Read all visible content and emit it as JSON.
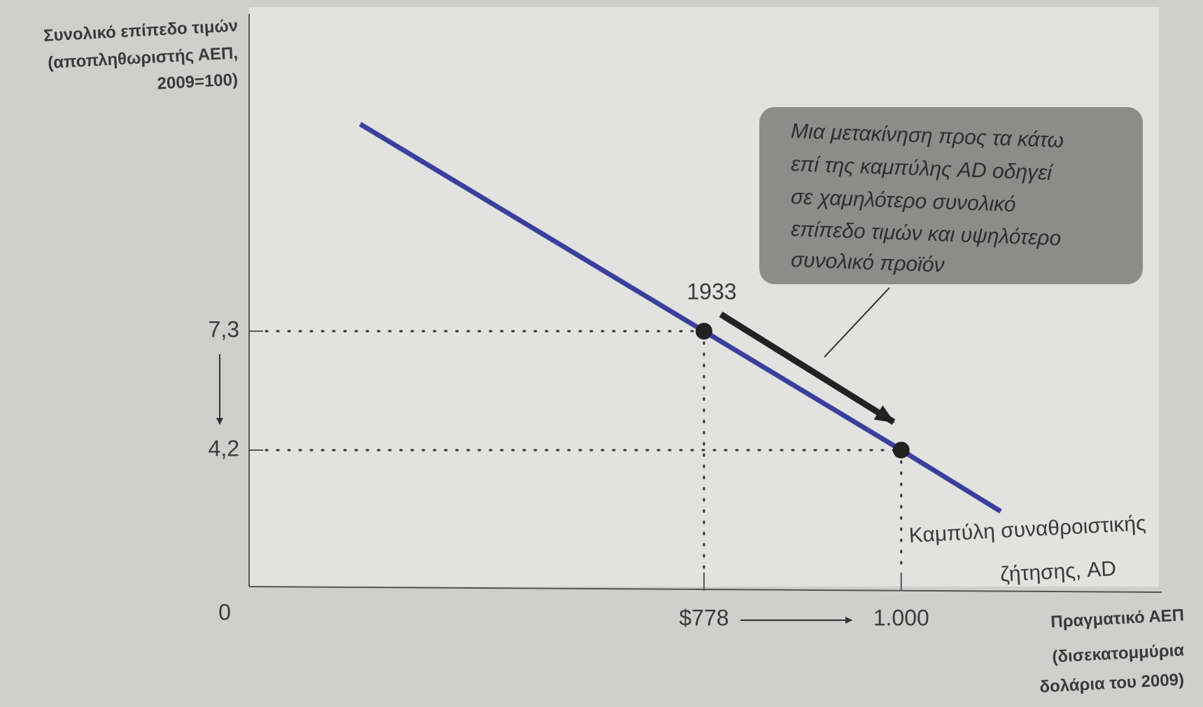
{
  "chart_data": {
    "type": "line",
    "y_label": [
      "Συνολικό επίπεδο τιμών",
      "(αποπληθωριστής ΑΕΠ,",
      "2009=100)"
    ],
    "x_label": [
      "Πραγματικό ΑΕΠ",
      "(δισεκατομμύρια",
      "δολάρια του 2009)"
    ],
    "origin_label": "0",
    "xlim": [
      266,
      1309
    ],
    "ylim": [
      0.64,
      15.57
    ],
    "xticks": [
      {
        "value": 778,
        "label": "$778"
      },
      {
        "value": 1000,
        "label": "1.000"
      }
    ],
    "yticks": [
      {
        "value": 7.3,
        "label": "7,3"
      },
      {
        "value": 4.2,
        "label": "4,2"
      }
    ],
    "series": [
      {
        "color": "#3b3f9c",
        "x": [
          391,
          778,
          1000,
          1112
        ],
        "values": [
          12.7,
          7.3,
          4.2,
          2.6
        ]
      }
    ],
    "points": [
      {
        "label": "1933",
        "x": 778,
        "y": 7.3
      },
      {
        "x": 1000,
        "y": 4.2
      }
    ],
    "curve_label": [
      "Καμπύλη συναθροιστικής",
      "ζήτησης, AD"
    ],
    "callout": [
      "Μια μετακίνηση προς τα κάτω",
      "επί της καμπύλης AD οδηγεί",
      "σε χαμηλότερο συνολικό",
      "επίπεδο τιμών και υψηλότερο",
      "συνολικό προϊόν"
    ]
  }
}
